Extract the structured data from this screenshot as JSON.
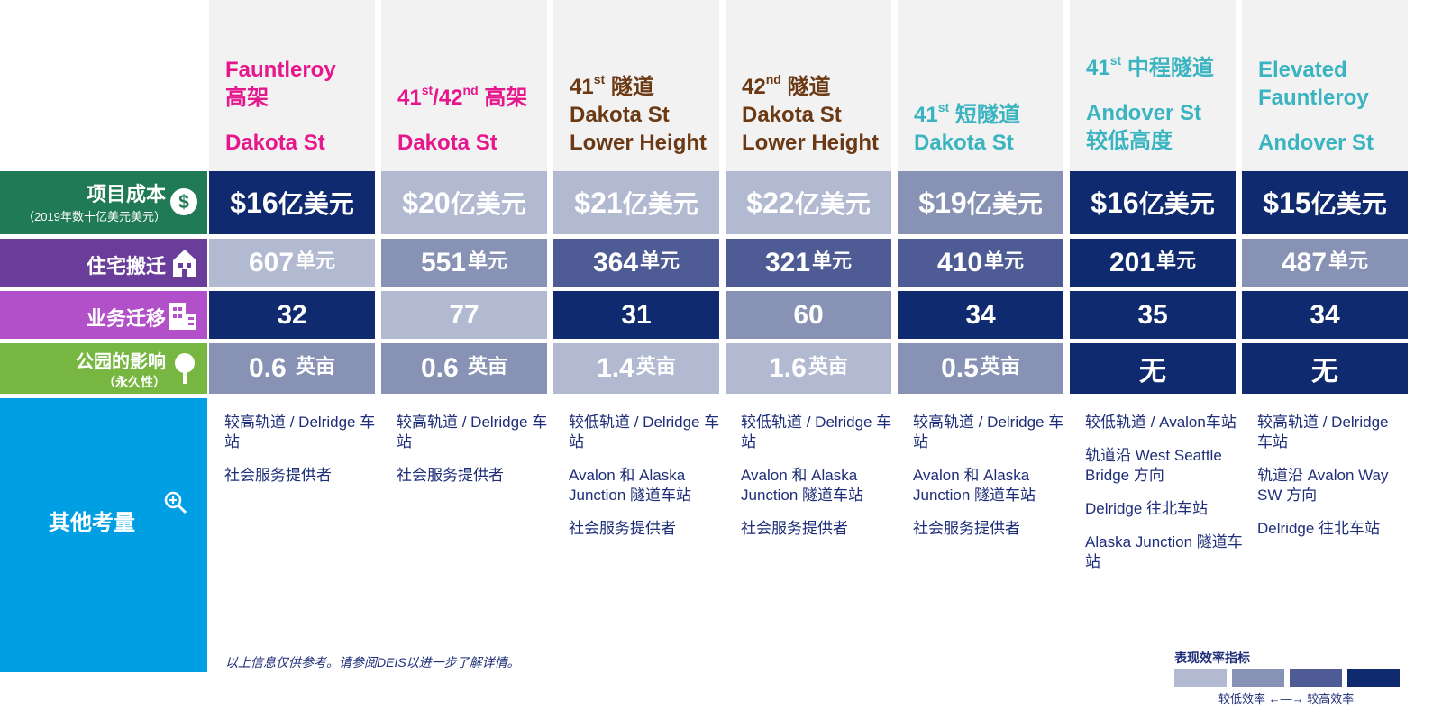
{
  "columns": [
    {
      "key": "c1",
      "color": "#e6168c",
      "title_lines": [
        "Fauntleroy",
        "高架",
        "",
        "Dakota St"
      ],
      "cost": "$16",
      "cost_unit": "亿美元",
      "units": "607",
      "units_unit": "单元",
      "business": "32",
      "park": "0.6",
      "park_unit": "英亩",
      "notes": [
        "较高轨道 / Delridge 车站",
        "社会服务提供者"
      ]
    },
    {
      "key": "c2",
      "color": "#e6168c",
      "title_lines": [
        "41",
        "/42",
        "高架",
        "Dakota St"
      ],
      "cost": "$20",
      "cost_unit": "亿美元",
      "units": "551",
      "units_unit": "单元",
      "business": "77",
      "park": "0.6",
      "park_unit": "英亩",
      "notes": [
        "较高轨道 / Delridge 车站",
        "社会服务提供者"
      ]
    },
    {
      "key": "c3",
      "color": "#6b3a15",
      "title_lines": [
        "41",
        "隧道",
        "Dakota St",
        "Lower Height"
      ],
      "cost": "$21",
      "cost_unit": "亿美元",
      "units": "364",
      "units_unit": "单元",
      "business": "31",
      "park": "1.4",
      "park_unit": "英亩",
      "notes": [
        "较低轨道 / Delridge 车站",
        "Avalon 和 Alaska Junction 隧道车站",
        "社会服务提供者"
      ]
    },
    {
      "key": "c4",
      "color": "#6b3a15",
      "title_lines": [
        "42",
        "隧道",
        "Dakota St",
        "Lower Height"
      ],
      "cost": "$22",
      "cost_unit": "亿美元",
      "units": "321",
      "units_unit": "单元",
      "business": "60",
      "park": "1.6",
      "park_unit": "英亩",
      "notes": [
        "较低轨道 / Delridge 车站",
        "Avalon 和 Alaska Junction 隧道车站",
        "社会服务提供者"
      ]
    },
    {
      "key": "c5",
      "color": "#3bb4c1",
      "title_lines": [
        "41",
        "短隧道",
        "Dakota St"
      ],
      "cost": "$19",
      "cost_unit": "亿美元",
      "units": "410",
      "units_unit": "单元",
      "business": "34",
      "park": "0.5",
      "park_unit": "英亩",
      "notes": [
        "较高轨道 / Delridge 车站",
        "Avalon 和 Alaska Junction 隧道车站",
        "社会服务提供者"
      ]
    },
    {
      "key": "c6",
      "color": "#3bb4c1",
      "title_lines": [
        "41",
        "中程隧道",
        "",
        "Andover St",
        "较低高度"
      ],
      "cost": "$16",
      "cost_unit": "亿美元",
      "units": "201",
      "units_unit": "单元",
      "business": "35",
      "park": "无",
      "park_unit": "",
      "notes": [
        "较低轨道 / Avalon车站",
        "轨道沿 West Seattle Bridge 方向",
        "Delridge 往北车站",
        "Alaska Junction 隧道车站"
      ]
    },
    {
      "key": "c7",
      "color": "#3bb4c1",
      "title_lines": [
        "Elevated",
        "Fauntleroy",
        "",
        "Andover St"
      ],
      "cost": "$15",
      "cost_unit": "亿美元",
      "units": "487",
      "units_unit": "单元",
      "business": "34",
      "park": "无",
      "park_unit": "",
      "notes": [
        "较高轨道 / Delridge 车站",
        "轨道沿 Avalon Way SW 方向",
        "Delridge 往北车站"
      ]
    }
  ],
  "superscripts": {
    "st": "st",
    "nd": "nd"
  },
  "rows": {
    "cost": {
      "label": "项目成本",
      "sub": "（2019年数十亿美元美元）",
      "color": "#1f7a55",
      "icon": "dollar-icon"
    },
    "residential": {
      "label": "住宅搬迁",
      "color": "#6a3d9a",
      "icon": "house-icon"
    },
    "business": {
      "label": "业务迁移",
      "color": "#b150c8",
      "icon": "building-icon"
    },
    "park": {
      "label": "公园的影响",
      "sub": "（永久性）",
      "color": "#76b641",
      "icon": "tree-icon"
    },
    "other": {
      "label": "其他考量",
      "color": "#009fe3",
      "icon": "magnifier-plus-icon"
    }
  },
  "scale_colors": [
    "#b2bad1",
    "#8792b4",
    "#4f5b94",
    "#0f2a6e"
  ],
  "footnote": "以上信息仅供参考。请参阅DEIS以进一步了解详情。",
  "legend": {
    "title": "表现效率指标",
    "caption": "较低效率 ←—→ 较高效率"
  }
}
